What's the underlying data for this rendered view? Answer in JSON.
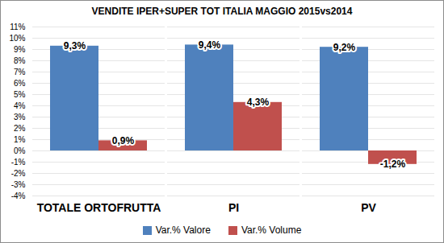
{
  "chart_data": {
    "type": "bar",
    "title": "VENDITE IPER+SUPER TOT ITALIA MAGGIO 2015vs2014",
    "categories": [
      "TOTALE ORTOFRUTTA",
      "PI",
      "PV"
    ],
    "series": [
      {
        "name": "Var.% Valore",
        "color": "#4f81bd",
        "values": [
          9.3,
          9.4,
          9.2
        ],
        "value_labels": [
          "9,3%",
          "9,4%",
          "9,2%"
        ]
      },
      {
        "name": "Var.% Volume",
        "color": "#c0504d",
        "values": [
          0.9,
          4.3,
          -1.2
        ],
        "value_labels": [
          "0,9%",
          "4,3%",
          "-1,2%"
        ]
      }
    ],
    "ylim": [
      -4,
      11
    ],
    "yticks": [
      {
        "value": -4,
        "label": "-4%"
      },
      {
        "value": -3,
        "label": "-3%"
      },
      {
        "value": -2,
        "label": "-2%"
      },
      {
        "value": -1,
        "label": "-1%"
      },
      {
        "value": 0,
        "label": "0%"
      },
      {
        "value": 1,
        "label": "1%"
      },
      {
        "value": 2,
        "label": "2%"
      },
      {
        "value": 3,
        "label": "3%"
      },
      {
        "value": 4,
        "label": "4%"
      },
      {
        "value": 5,
        "label": "5%"
      },
      {
        "value": 6,
        "label": "6%"
      },
      {
        "value": 7,
        "label": "7%"
      },
      {
        "value": 8,
        "label": "8%"
      },
      {
        "value": 9,
        "label": "9%"
      },
      {
        "value": 10,
        "label": "10%"
      },
      {
        "value": 11,
        "label": "11%"
      }
    ],
    "grid": true,
    "data_labels": true,
    "legend": "bottom"
  }
}
